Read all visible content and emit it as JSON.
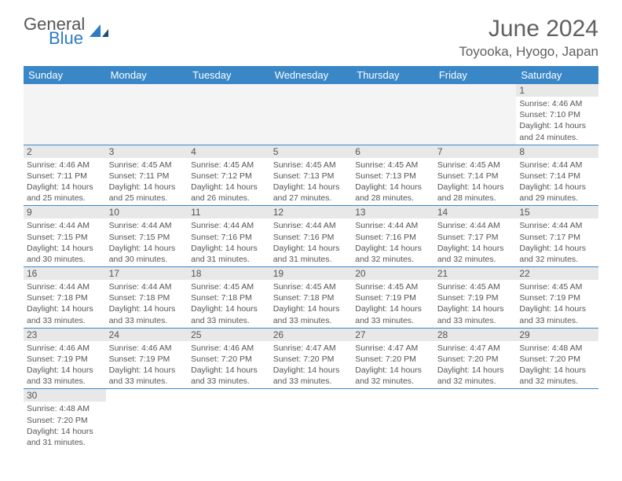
{
  "logo": {
    "word1": "General",
    "word2": "Blue"
  },
  "title": "June 2024",
  "subtitle": "Toyooka, Hyogo, Japan",
  "day_headers": [
    "Sunday",
    "Monday",
    "Tuesday",
    "Wednesday",
    "Thursday",
    "Friday",
    "Saturday"
  ],
  "colors": {
    "header_bg": "#3a87c7",
    "header_text": "#ffffff",
    "daynum_bg": "#e8e8e8",
    "body_text": "#555",
    "border": "#3a87c7",
    "title_text": "#606060"
  },
  "weeks": [
    [
      null,
      null,
      null,
      null,
      null,
      null,
      {
        "n": "1",
        "sunrise": "4:46 AM",
        "sunset": "7:10 PM",
        "daylight": "14 hours and 24 minutes."
      }
    ],
    [
      {
        "n": "2",
        "sunrise": "4:46 AM",
        "sunset": "7:11 PM",
        "daylight": "14 hours and 25 minutes."
      },
      {
        "n": "3",
        "sunrise": "4:45 AM",
        "sunset": "7:11 PM",
        "daylight": "14 hours and 25 minutes."
      },
      {
        "n": "4",
        "sunrise": "4:45 AM",
        "sunset": "7:12 PM",
        "daylight": "14 hours and 26 minutes."
      },
      {
        "n": "5",
        "sunrise": "4:45 AM",
        "sunset": "7:13 PM",
        "daylight": "14 hours and 27 minutes."
      },
      {
        "n": "6",
        "sunrise": "4:45 AM",
        "sunset": "7:13 PM",
        "daylight": "14 hours and 28 minutes."
      },
      {
        "n": "7",
        "sunrise": "4:45 AM",
        "sunset": "7:14 PM",
        "daylight": "14 hours and 28 minutes."
      },
      {
        "n": "8",
        "sunrise": "4:44 AM",
        "sunset": "7:14 PM",
        "daylight": "14 hours and 29 minutes."
      }
    ],
    [
      {
        "n": "9",
        "sunrise": "4:44 AM",
        "sunset": "7:15 PM",
        "daylight": "14 hours and 30 minutes."
      },
      {
        "n": "10",
        "sunrise": "4:44 AM",
        "sunset": "7:15 PM",
        "daylight": "14 hours and 30 minutes."
      },
      {
        "n": "11",
        "sunrise": "4:44 AM",
        "sunset": "7:16 PM",
        "daylight": "14 hours and 31 minutes."
      },
      {
        "n": "12",
        "sunrise": "4:44 AM",
        "sunset": "7:16 PM",
        "daylight": "14 hours and 31 minutes."
      },
      {
        "n": "13",
        "sunrise": "4:44 AM",
        "sunset": "7:16 PM",
        "daylight": "14 hours and 32 minutes."
      },
      {
        "n": "14",
        "sunrise": "4:44 AM",
        "sunset": "7:17 PM",
        "daylight": "14 hours and 32 minutes."
      },
      {
        "n": "15",
        "sunrise": "4:44 AM",
        "sunset": "7:17 PM",
        "daylight": "14 hours and 32 minutes."
      }
    ],
    [
      {
        "n": "16",
        "sunrise": "4:44 AM",
        "sunset": "7:18 PM",
        "daylight": "14 hours and 33 minutes."
      },
      {
        "n": "17",
        "sunrise": "4:44 AM",
        "sunset": "7:18 PM",
        "daylight": "14 hours and 33 minutes."
      },
      {
        "n": "18",
        "sunrise": "4:45 AM",
        "sunset": "7:18 PM",
        "daylight": "14 hours and 33 minutes."
      },
      {
        "n": "19",
        "sunrise": "4:45 AM",
        "sunset": "7:18 PM",
        "daylight": "14 hours and 33 minutes."
      },
      {
        "n": "20",
        "sunrise": "4:45 AM",
        "sunset": "7:19 PM",
        "daylight": "14 hours and 33 minutes."
      },
      {
        "n": "21",
        "sunrise": "4:45 AM",
        "sunset": "7:19 PM",
        "daylight": "14 hours and 33 minutes."
      },
      {
        "n": "22",
        "sunrise": "4:45 AM",
        "sunset": "7:19 PM",
        "daylight": "14 hours and 33 minutes."
      }
    ],
    [
      {
        "n": "23",
        "sunrise": "4:46 AM",
        "sunset": "7:19 PM",
        "daylight": "14 hours and 33 minutes."
      },
      {
        "n": "24",
        "sunrise": "4:46 AM",
        "sunset": "7:19 PM",
        "daylight": "14 hours and 33 minutes."
      },
      {
        "n": "25",
        "sunrise": "4:46 AM",
        "sunset": "7:20 PM",
        "daylight": "14 hours and 33 minutes."
      },
      {
        "n": "26",
        "sunrise": "4:47 AM",
        "sunset": "7:20 PM",
        "daylight": "14 hours and 33 minutes."
      },
      {
        "n": "27",
        "sunrise": "4:47 AM",
        "sunset": "7:20 PM",
        "daylight": "14 hours and 32 minutes."
      },
      {
        "n": "28",
        "sunrise": "4:47 AM",
        "sunset": "7:20 PM",
        "daylight": "14 hours and 32 minutes."
      },
      {
        "n": "29",
        "sunrise": "4:48 AM",
        "sunset": "7:20 PM",
        "daylight": "14 hours and 32 minutes."
      }
    ],
    [
      {
        "n": "30",
        "sunrise": "4:48 AM",
        "sunset": "7:20 PM",
        "daylight": "14 hours and 31 minutes."
      },
      null,
      null,
      null,
      null,
      null,
      null
    ]
  ],
  "labels": {
    "sunrise": "Sunrise:",
    "sunset": "Sunset:",
    "daylight": "Daylight:"
  }
}
